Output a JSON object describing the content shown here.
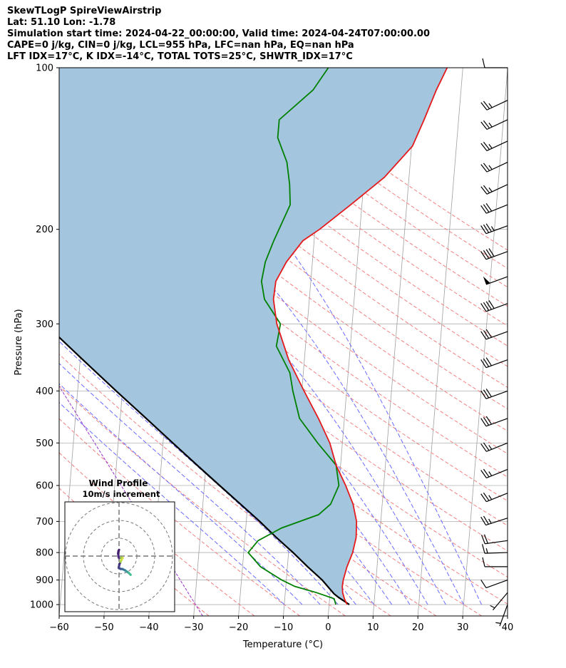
{
  "header": {
    "title": "SkewTLogP SpireViewAirstrip",
    "latlon": "Lat: 51.10   Lon: -1.78",
    "times": "Simulation start time: 2024-04-22_00:00:00, Valid time: 2024-04-24T07:00:00.00",
    "cape": "CAPE=0 j/kg, CIN=0 j/kg, LCL=955 hPa, LFC=nan hPa, EQ=nan hPa",
    "indices": "LFT IDX=17°C, K IDX=-14°C, TOTAL TOTS=25°C, SHWTR_IDX=17°C"
  },
  "chart_data": {
    "type": "line",
    "subtype": "skew-t log-p",
    "xlabel": "Temperature (°C)",
    "ylabel": "Pressure (hPa)",
    "xlim": [
      -60,
      40
    ],
    "ylim": [
      1050,
      100
    ],
    "x_ticks": [
      "−60",
      "−50",
      "−40",
      "−30",
      "−20",
      "−10",
      "0",
      "10",
      "20",
      "30",
      "40"
    ],
    "y_ticks": [
      "100",
      "200",
      "300",
      "400",
      "500",
      "600",
      "700",
      "800",
      "900",
      "1000"
    ],
    "colors": {
      "temperature": "#e41a1c",
      "dewpoint": "#008000",
      "parcel": "#000000",
      "cape_fill": "#a3c6de",
      "dry_adiabat": "#f08080",
      "moist_adiabat": "#6a6aff",
      "isotherm": "#aaaaaa"
    },
    "series": [
      {
        "name": "Temperature",
        "pressure": [
          1000,
          975,
          950,
          925,
          900,
          850,
          800,
          750,
          700,
          650,
          600,
          550,
          500,
          450,
          400,
          350,
          300,
          270,
          250,
          230,
          210,
          200,
          180,
          160,
          140,
          125,
          110,
          100
        ],
        "values": [
          4.0,
          3.3,
          2.8,
          2.6,
          2.7,
          3.3,
          4.3,
          4.8,
          4.6,
          3.5,
          1.5,
          -1.0,
          -2.8,
          -5.8,
          -9.5,
          -13.5,
          -16.8,
          -18.0,
          -17.8,
          -15.8,
          -12.5,
          -9.0,
          -2.5,
          4.5,
          10.2,
          12.3,
          14.5,
          16.5
        ]
      },
      {
        "name": "Dewpoint",
        "pressure": [
          1000,
          975,
          950,
          925,
          900,
          850,
          800,
          760,
          720,
          680,
          650,
          600,
          550,
          500,
          450,
          400,
          370,
          330,
          300,
          270,
          250,
          230,
          210,
          180,
          165,
          150,
          135,
          125,
          110,
          100
        ],
        "values": [
          1.5,
          1.0,
          -3.0,
          -8.0,
          -11.0,
          -16.0,
          -19.0,
          -17.0,
          -12.0,
          -4.0,
          -1.5,
          0.0,
          -1.0,
          -5.5,
          -10.0,
          -12.0,
          -13.0,
          -16.5,
          -16.0,
          -20.0,
          -21.0,
          -20.5,
          -19.0,
          -16.0,
          -16.5,
          -17.5,
          -20.0,
          -20.0,
          -13.0,
          -10.0
        ]
      },
      {
        "name": "Parcel",
        "pressure": [
          1000,
          990,
          970,
          955,
          900,
          850,
          800,
          750,
          700,
          650,
          600,
          550,
          500,
          450,
          400,
          350,
          300,
          250,
          200,
          175,
          150,
          125,
          100
        ],
        "values": [
          4.5,
          3.7,
          2.0,
          0.9,
          -2.0,
          -5.5,
          -9.0,
          -13.0,
          -17.0,
          -21.6,
          -26.6,
          -32.0,
          -37.8,
          -44.2,
          -51.4,
          -59.4,
          -68.5,
          -79.0,
          -91.4,
          -98.5,
          -106.6,
          -116.0,
          -127.3
        ]
      }
    ],
    "wind_barbs": {
      "pressure": [
        100,
        115,
        125,
        137,
        150,
        165,
        180,
        197,
        220,
        245,
        275,
        310,
        350,
        400,
        450,
        500,
        560,
        620,
        690,
        760,
        800,
        850,
        900,
        950,
        1000
      ],
      "speed_kt": [
        10,
        25,
        25,
        25,
        25,
        25,
        30,
        35,
        40,
        50,
        40,
        30,
        30,
        30,
        30,
        25,
        25,
        25,
        25,
        20,
        15,
        10,
        10,
        5,
        5
      ],
      "direction_deg": [
        270,
        245,
        245,
        245,
        245,
        245,
        248,
        250,
        250,
        250,
        250,
        250,
        250,
        250,
        250,
        248,
        248,
        248,
        252,
        262,
        268,
        270,
        250,
        220,
        200
      ]
    },
    "hodograph": {
      "title": "Wind Profile",
      "subtitle": "10m/s increment",
      "ring_step_ms": 10,
      "rings": 3,
      "u": [
        6.5,
        5.5,
        4.5,
        3.2,
        2.0,
        0.8,
        -0.2,
        0.2,
        0.8,
        1.3,
        1.7,
        2.0,
        1.2,
        0.0,
        -0.3,
        -0.5,
        -0.3,
        0.0
      ],
      "v": [
        -10.5,
        -9.5,
        -8.8,
        -7.9,
        -7.3,
        -7.2,
        -6.6,
        -4.6,
        -3.2,
        -2.2,
        -1.4,
        -1.0,
        -0.9,
        -1.2,
        -0.4,
        1.5,
        2.8,
        3.5
      ]
    }
  }
}
